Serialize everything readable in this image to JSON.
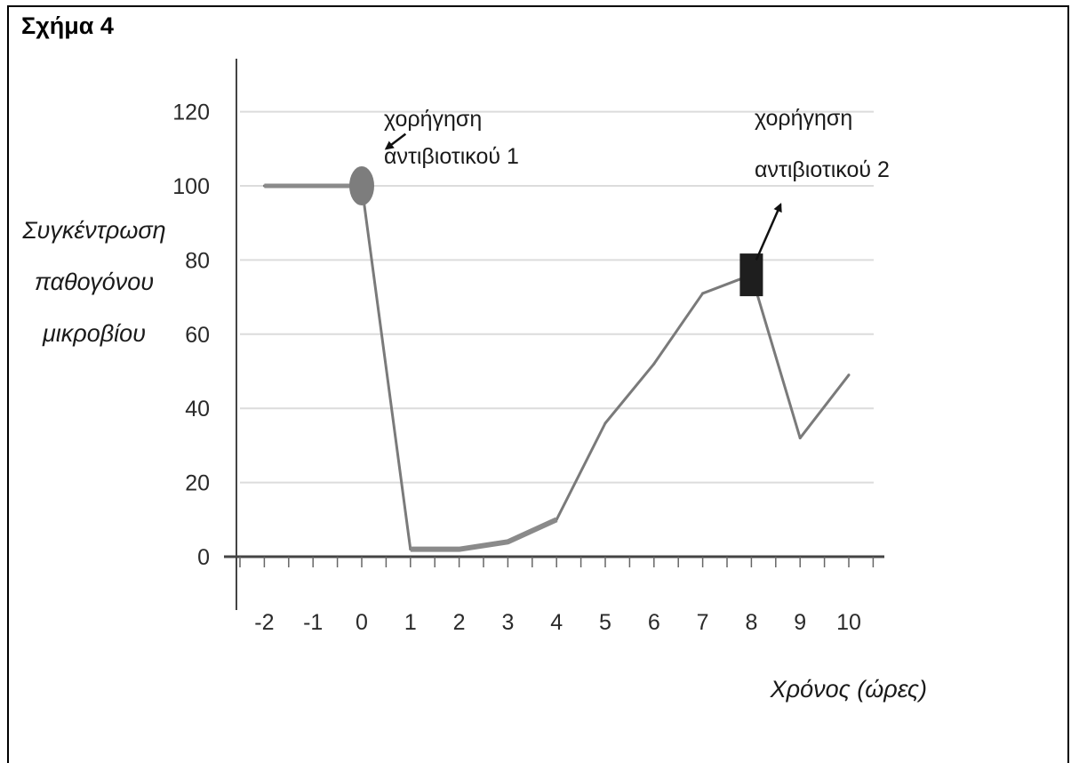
{
  "figure_title": "Σχήμα 4",
  "chart_data": {
    "type": "line",
    "title": "",
    "xlabel": "Χρόνος (ώρες)",
    "ylabel": [
      "Συγκέντρωση",
      "παθογόνου",
      "μικροβίου"
    ],
    "xlim": [
      -2,
      10
    ],
    "ylim": [
      0,
      120
    ],
    "x_ticks": [
      "-2",
      "-1",
      "0",
      "1",
      "2",
      "3",
      "4",
      "5",
      "6",
      "7",
      "8",
      "9",
      "10"
    ],
    "y_ticks": [
      "0",
      "20",
      "40",
      "60",
      "80",
      "100",
      "120"
    ],
    "grid": "horizontal",
    "series": [
      {
        "x": [
          -2,
          0,
          1,
          2,
          3,
          4,
          5,
          6,
          7,
          8,
          9,
          10
        ],
        "y": [
          100,
          100,
          2,
          2,
          4,
          10,
          36,
          52,
          71,
          76,
          32,
          49
        ],
        "color": "#7a7a7a"
      }
    ],
    "markers": [
      {
        "x": 0,
        "y": 100,
        "shape": "circle",
        "color": "#7d7d7d"
      },
      {
        "x": 8,
        "y": 76,
        "shape": "square",
        "color": "#1e1e1e"
      }
    ],
    "annotations": [
      {
        "lines": [
          "χορήγηση",
          "αντιβιοτικού 1"
        ],
        "target": {
          "x": 0.5,
          "y": 110
        },
        "arrow_from": {
          "x": 0.9,
          "y": 114
        }
      },
      {
        "lines": [
          "χορήγηση",
          "αντιβιοτικού 2"
        ],
        "target": {
          "x": 8.6,
          "y": 95
        },
        "arrow_from": {
          "x": 8.1,
          "y": 80
        }
      }
    ]
  }
}
